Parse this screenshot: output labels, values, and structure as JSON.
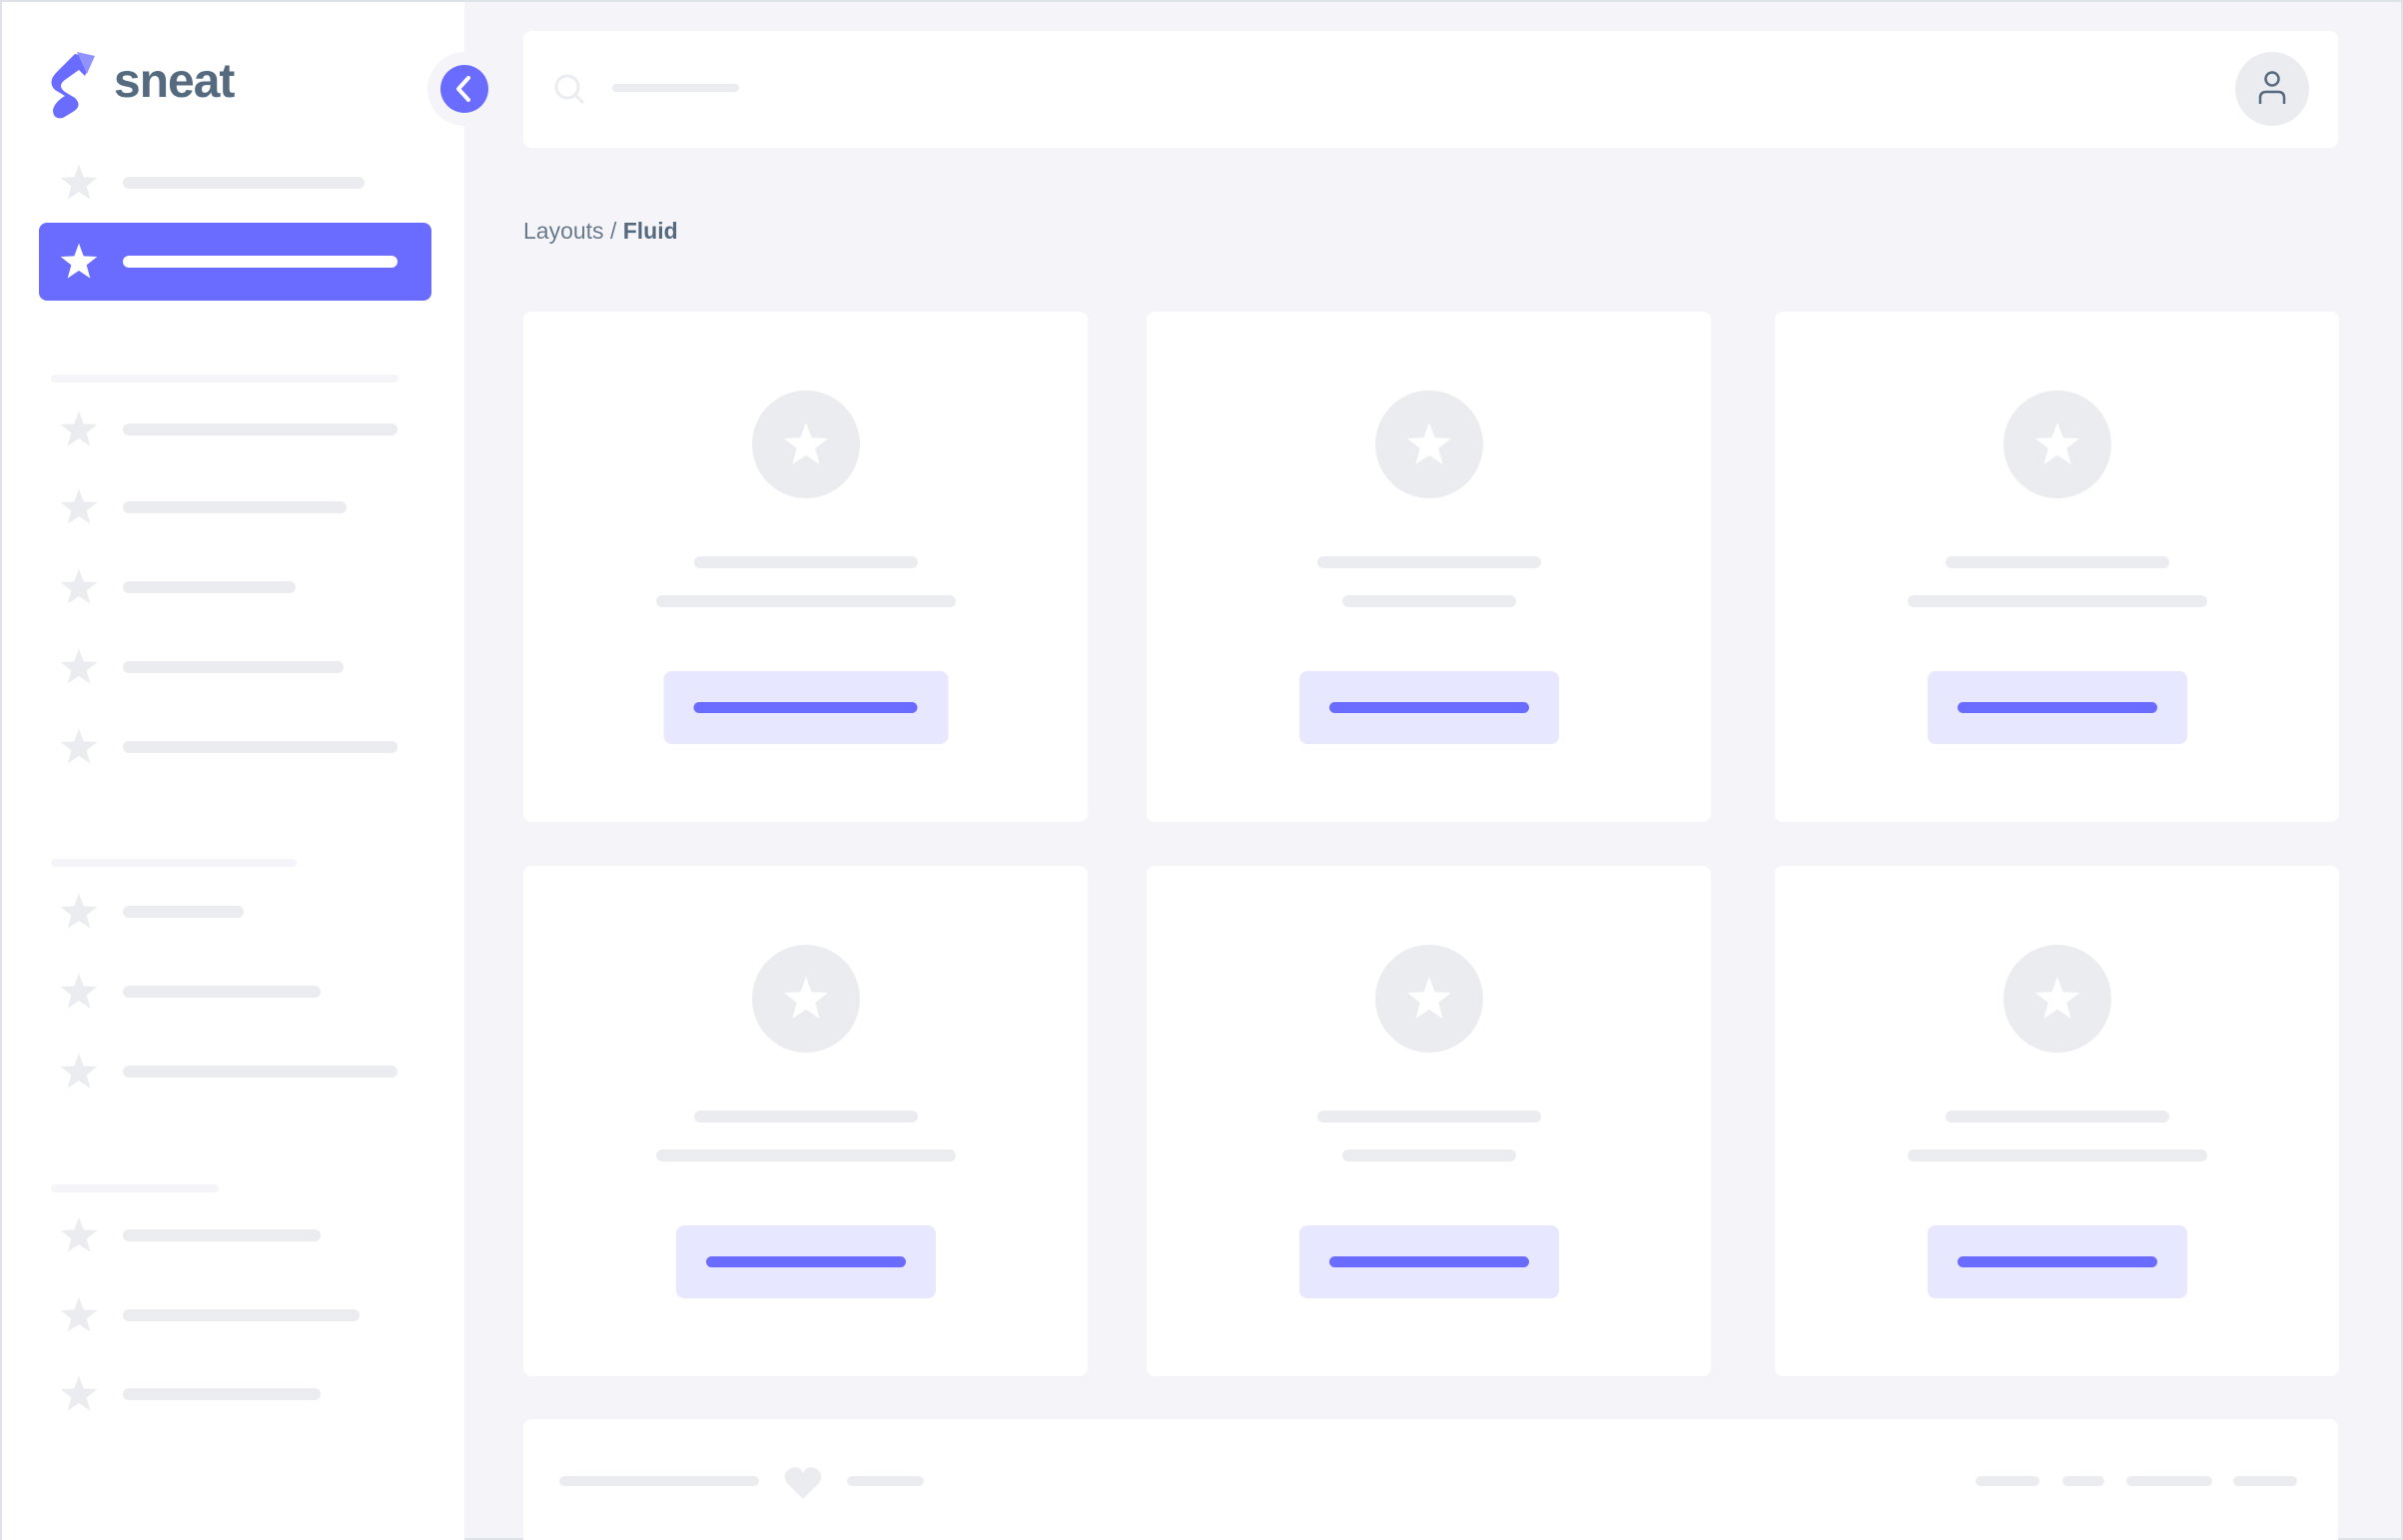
{
  "app": {
    "brand": "sneat",
    "accent": "#696cff",
    "text_color": "#566a7f"
  },
  "breadcrumb": {
    "parent": "Layouts",
    "separator": " / ",
    "current": "Fluid"
  },
  "icons": {
    "logo": "sneat-logo",
    "collapse": "chevron-left-icon",
    "search": "search-icon",
    "user": "user-icon",
    "nav": "star-icon",
    "footer": "heart-icon"
  }
}
